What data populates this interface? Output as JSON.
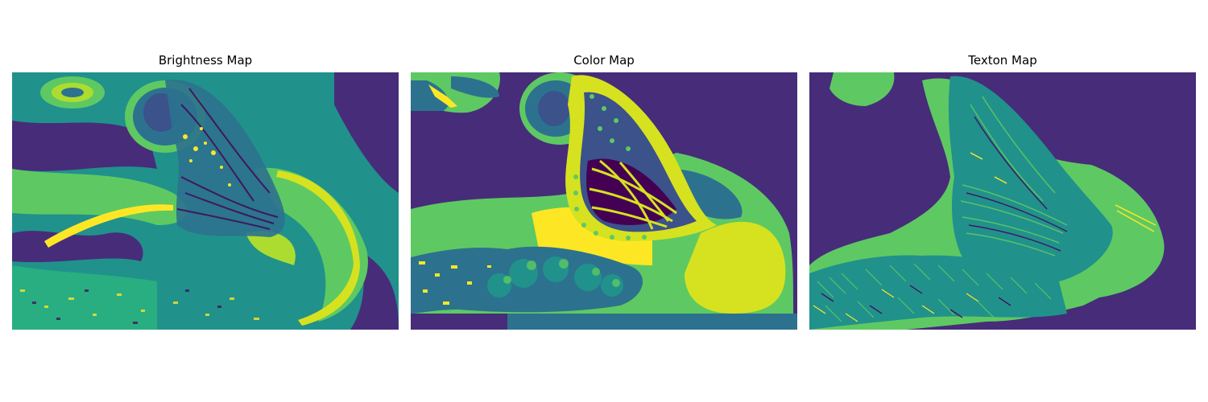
{
  "figure": {
    "panels": [
      {
        "title": "Brightness Map"
      },
      {
        "title": "Color Map"
      },
      {
        "title": "Texton Map"
      }
    ]
  },
  "palette": {
    "purple": "#472c7a",
    "dark_purple": "#440154",
    "slate_blue": "#3b528b",
    "blue_teal": "#2c728e",
    "teal": "#21918c",
    "sea_green": "#28ae80",
    "green": "#5ec962",
    "yellow_green": "#addc30",
    "yellow": "#fde725"
  }
}
